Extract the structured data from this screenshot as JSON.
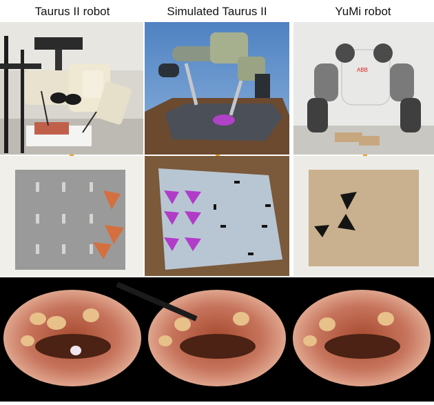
{
  "columns": [
    {
      "title": "Taurus II robot"
    },
    {
      "title": "Simulated Taurus II"
    },
    {
      "title": "YuMi robot"
    }
  ],
  "colors": {
    "arrow": "#e8a21a",
    "background_bottom": "#000000",
    "tissue": "#c7745d",
    "pegboard_gray": "#9a9a9a",
    "pegboard_cardboard": "#c9b08e",
    "triangle_orange": "#d4703f",
    "triangle_black": "#141414",
    "triangle_magenta": "#b13cc8"
  },
  "icons": [
    "down-arrow-icon",
    "down-arrow-icon",
    "down-arrow-icon"
  ],
  "brand_text": "ABB"
}
